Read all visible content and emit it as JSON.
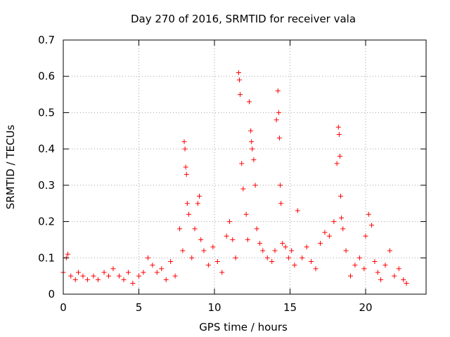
{
  "chart_data": {
    "type": "scatter",
    "title": "Day 270 of 2016, SRMTID for receiver vala",
    "xlabel": "GPS time / hours",
    "ylabel": "SRMTID / TECUs",
    "xlim": [
      0,
      24
    ],
    "ylim": [
      0,
      0.7
    ],
    "x_ticks": [
      0,
      5,
      10,
      15,
      20
    ],
    "x_tick_labels": [
      "0",
      "5",
      "10",
      "15",
      "20"
    ],
    "y_ticks": [
      0,
      0.1,
      0.2,
      0.3,
      0.4,
      0.5,
      0.6,
      0.7
    ],
    "y_tick_labels": [
      "0",
      "0.1",
      "0.2",
      "0.3",
      "0.4",
      "0.5",
      "0.6",
      "0.7"
    ],
    "grid": true,
    "marker": "plus",
    "color": "#ff0000",
    "series": [
      {
        "name": "SRMTID",
        "x": [
          0.0,
          0.2,
          0.3,
          0.5,
          0.8,
          1.0,
          1.3,
          1.6,
          2.0,
          2.3,
          2.7,
          3.0,
          3.3,
          3.7,
          4.0,
          4.3,
          4.6,
          5.0,
          5.3,
          5.6,
          5.9,
          6.2,
          6.5,
          6.8,
          7.1,
          7.4,
          7.7,
          7.9,
          8.0,
          8.05,
          8.1,
          8.15,
          8.2,
          8.3,
          8.5,
          8.7,
          8.9,
          9.0,
          9.1,
          9.3,
          9.6,
          9.9,
          10.2,
          10.5,
          10.8,
          11.0,
          11.2,
          11.4,
          11.6,
          11.65,
          11.7,
          11.8,
          11.9,
          12.1,
          12.2,
          12.3,
          12.4,
          12.45,
          12.5,
          12.6,
          12.7,
          12.8,
          13.0,
          13.2,
          13.5,
          13.8,
          14.0,
          14.1,
          14.2,
          14.25,
          14.3,
          14.35,
          14.4,
          14.5,
          14.7,
          14.9,
          15.1,
          15.3,
          15.5,
          15.8,
          16.1,
          16.4,
          16.7,
          17.0,
          17.3,
          17.6,
          17.9,
          18.1,
          18.2,
          18.25,
          18.3,
          18.35,
          18.4,
          18.5,
          18.7,
          19.0,
          19.3,
          19.6,
          19.9,
          20.0,
          20.2,
          20.4,
          20.6,
          20.8,
          21.0,
          21.3,
          21.6,
          21.9,
          22.2,
          22.5,
          22.7
        ],
        "y": [
          0.06,
          0.1,
          0.11,
          0.05,
          0.04,
          0.06,
          0.05,
          0.04,
          0.05,
          0.04,
          0.06,
          0.05,
          0.07,
          0.05,
          0.04,
          0.06,
          0.03,
          0.05,
          0.06,
          0.1,
          0.08,
          0.06,
          0.07,
          0.04,
          0.09,
          0.05,
          0.18,
          0.12,
          0.42,
          0.4,
          0.35,
          0.33,
          0.25,
          0.22,
          0.1,
          0.18,
          0.25,
          0.27,
          0.15,
          0.12,
          0.08,
          0.13,
          0.09,
          0.06,
          0.16,
          0.2,
          0.15,
          0.1,
          0.61,
          0.59,
          0.55,
          0.36,
          0.29,
          0.22,
          0.15,
          0.53,
          0.45,
          0.42,
          0.4,
          0.37,
          0.3,
          0.18,
          0.14,
          0.12,
          0.1,
          0.09,
          0.12,
          0.48,
          0.56,
          0.5,
          0.43,
          0.3,
          0.25,
          0.14,
          0.13,
          0.1,
          0.12,
          0.08,
          0.23,
          0.1,
          0.13,
          0.09,
          0.07,
          0.14,
          0.17,
          0.16,
          0.2,
          0.36,
          0.46,
          0.44,
          0.38,
          0.27,
          0.21,
          0.18,
          0.12,
          0.05,
          0.08,
          0.1,
          0.07,
          0.16,
          0.22,
          0.19,
          0.09,
          0.06,
          0.04,
          0.08,
          0.12,
          0.05,
          0.07,
          0.04,
          0.03
        ]
      }
    ]
  }
}
